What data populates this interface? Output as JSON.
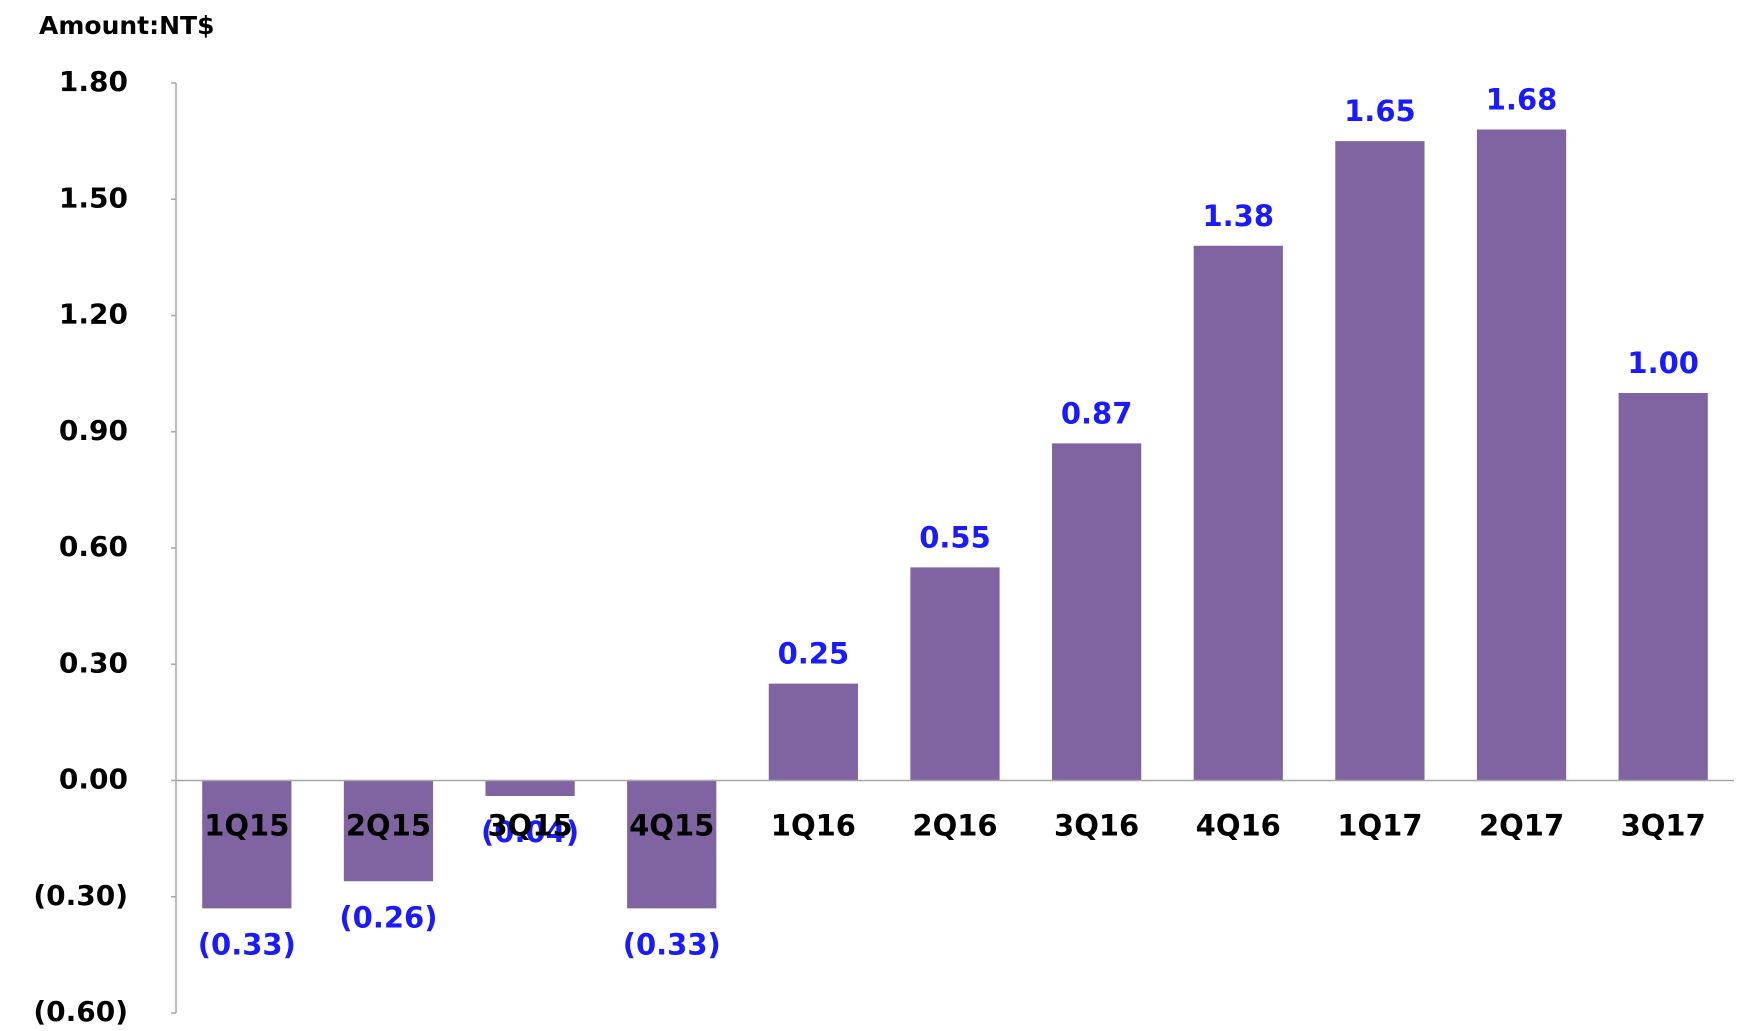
{
  "chart_data": {
    "type": "bar",
    "y_axis_label": "Amount:NT$",
    "categories": [
      "1Q15",
      "2Q15",
      "3Q15",
      "4Q15",
      "1Q16",
      "2Q16",
      "3Q16",
      "4Q16",
      "1Q17",
      "2Q17",
      "3Q17"
    ],
    "values": [
      -0.33,
      -0.26,
      -0.04,
      -0.33,
      0.25,
      0.55,
      0.87,
      1.38,
      1.65,
      1.68,
      1.0
    ],
    "value_labels": [
      "(0.33)",
      "(0.26)",
      "(0.04)",
      "(0.33)",
      "0.25",
      "0.55",
      "0.87",
      "1.38",
      "1.65",
      "1.68",
      "1.00"
    ],
    "color": "#8064a2",
    "ylim": [
      -0.6,
      1.8
    ],
    "yticks": [
      {
        "value": -0.6,
        "label": "(0.60)"
      },
      {
        "value": -0.3,
        "label": "(0.30)"
      },
      {
        "value": 0,
        "label": "0.00"
      },
      {
        "value": 0.3,
        "label": "0.30"
      },
      {
        "value": 0.6,
        "label": "0.60"
      },
      {
        "value": 0.9,
        "label": "0.90"
      },
      {
        "value": 1.2,
        "label": "1.20"
      },
      {
        "value": 1.5,
        "label": "1.50"
      },
      {
        "value": 1.8,
        "label": "1.80"
      }
    ],
    "grid": false
  }
}
